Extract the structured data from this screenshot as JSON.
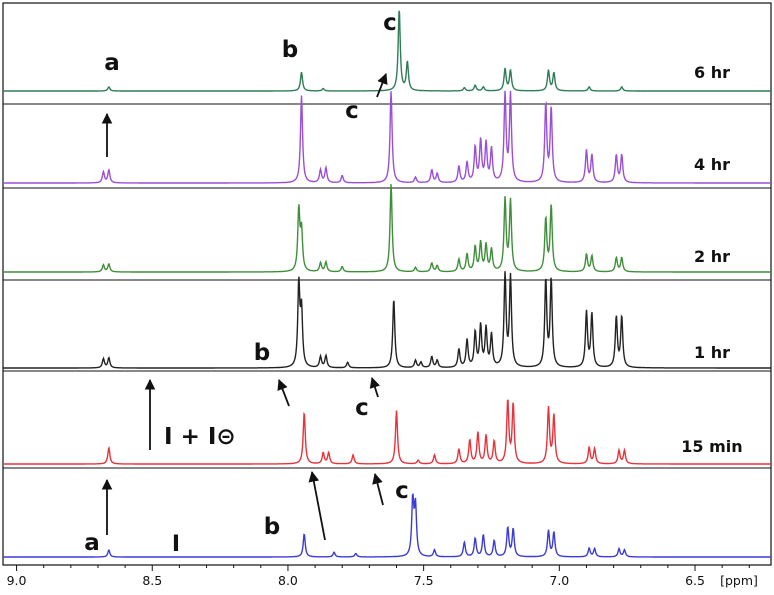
{
  "chart_data": {
    "type": "line",
    "title": "",
    "xlabel": "",
    "x_unit": "[ppm]",
    "xlim": [
      9.05,
      6.22
    ],
    "x_reversed": true,
    "x_ticks": [
      {
        "value": 9.0,
        "label": "9.0"
      },
      {
        "value": 8.5,
        "label": "8.5"
      },
      {
        "value": 8.0,
        "label": "8.0"
      },
      {
        "value": 7.5,
        "label": "7.5"
      },
      {
        "value": 7.0,
        "label": "7.0"
      },
      {
        "value": 6.5,
        "label": "6.5"
      }
    ],
    "series": [
      {
        "name": "6 hr",
        "color": "#2e7d55",
        "peaks": [
          [
            8.66,
            0.05
          ],
          [
            7.95,
            0.23
          ],
          [
            7.87,
            0.03
          ],
          [
            7.59,
            1.0
          ],
          [
            7.56,
            0.35
          ],
          [
            7.35,
            0.04
          ],
          [
            7.31,
            0.07
          ],
          [
            7.28,
            0.05
          ],
          [
            7.2,
            0.27
          ],
          [
            7.18,
            0.25
          ],
          [
            7.04,
            0.25
          ],
          [
            7.02,
            0.22
          ],
          [
            6.89,
            0.05
          ],
          [
            6.77,
            0.05
          ]
        ]
      },
      {
        "name": "4 hr",
        "color": "#9b4fd6",
        "peaks": [
          [
            8.68,
            0.12
          ],
          [
            8.66,
            0.14
          ],
          [
            7.95,
            0.95
          ],
          [
            7.88,
            0.14
          ],
          [
            7.86,
            0.16
          ],
          [
            7.8,
            0.08
          ],
          [
            7.62,
            1.0
          ],
          [
            7.53,
            0.06
          ],
          [
            7.47,
            0.14
          ],
          [
            7.45,
            0.1
          ],
          [
            7.37,
            0.18
          ],
          [
            7.34,
            0.22
          ],
          [
            7.31,
            0.38
          ],
          [
            7.29,
            0.45
          ],
          [
            7.27,
            0.42
          ],
          [
            7.25,
            0.36
          ],
          [
            7.2,
            0.95
          ],
          [
            7.18,
            0.95
          ],
          [
            7.05,
            0.85
          ],
          [
            7.03,
            0.8
          ],
          [
            6.9,
            0.35
          ],
          [
            6.88,
            0.3
          ],
          [
            6.79,
            0.3
          ],
          [
            6.77,
            0.3
          ]
        ]
      },
      {
        "name": "2 hr",
        "color": "#3f8f3a",
        "peaks": [
          [
            8.68,
            0.08
          ],
          [
            8.66,
            0.09
          ],
          [
            7.96,
            0.7
          ],
          [
            7.95,
            0.45
          ],
          [
            7.88,
            0.1
          ],
          [
            7.86,
            0.11
          ],
          [
            7.8,
            0.06
          ],
          [
            7.62,
            1.0
          ],
          [
            7.53,
            0.05
          ],
          [
            7.47,
            0.1
          ],
          [
            7.45,
            0.07
          ],
          [
            7.37,
            0.14
          ],
          [
            7.34,
            0.2
          ],
          [
            7.31,
            0.28
          ],
          [
            7.29,
            0.33
          ],
          [
            7.27,
            0.3
          ],
          [
            7.25,
            0.25
          ],
          [
            7.2,
            0.82
          ],
          [
            7.18,
            0.8
          ],
          [
            7.05,
            0.6
          ],
          [
            7.03,
            0.75
          ],
          [
            6.9,
            0.2
          ],
          [
            6.88,
            0.18
          ],
          [
            6.79,
            0.16
          ],
          [
            6.77,
            0.16
          ]
        ]
      },
      {
        "name": "1 hr",
        "color": "#222222",
        "peaks": [
          [
            8.68,
            0.1
          ],
          [
            8.66,
            0.11
          ],
          [
            7.96,
            0.9
          ],
          [
            7.95,
            0.6
          ],
          [
            7.88,
            0.12
          ],
          [
            7.86,
            0.13
          ],
          [
            7.78,
            0.06
          ],
          [
            7.61,
            0.75
          ],
          [
            7.53,
            0.08
          ],
          [
            7.51,
            0.06
          ],
          [
            7.47,
            0.12
          ],
          [
            7.45,
            0.08
          ],
          [
            7.37,
            0.2
          ],
          [
            7.34,
            0.3
          ],
          [
            7.31,
            0.38
          ],
          [
            7.29,
            0.45
          ],
          [
            7.27,
            0.42
          ],
          [
            7.25,
            0.35
          ],
          [
            7.2,
            1.0
          ],
          [
            7.18,
            0.98
          ],
          [
            7.05,
            0.95
          ],
          [
            7.03,
            0.95
          ],
          [
            6.9,
            0.6
          ],
          [
            6.88,
            0.58
          ],
          [
            6.79,
            0.55
          ],
          [
            6.77,
            0.55
          ]
        ]
      },
      {
        "name": "15 min",
        "color": "#e8333a",
        "peaks": [
          [
            8.66,
            0.22
          ],
          [
            7.94,
            0.7
          ],
          [
            7.87,
            0.15
          ],
          [
            7.85,
            0.15
          ],
          [
            7.76,
            0.12
          ],
          [
            7.6,
            0.72
          ],
          [
            7.52,
            0.05
          ],
          [
            7.46,
            0.12
          ],
          [
            7.37,
            0.2
          ],
          [
            7.33,
            0.32
          ],
          [
            7.3,
            0.42
          ],
          [
            7.27,
            0.38
          ],
          [
            7.24,
            0.3
          ],
          [
            7.19,
            0.85
          ],
          [
            7.17,
            0.8
          ],
          [
            7.04,
            0.75
          ],
          [
            7.02,
            0.65
          ],
          [
            6.89,
            0.22
          ],
          [
            6.87,
            0.2
          ],
          [
            6.78,
            0.18
          ],
          [
            6.76,
            0.18
          ]
        ]
      },
      {
        "name": "",
        "color": "#3b3bd6",
        "peaks": [
          [
            8.66,
            0.12
          ],
          [
            7.94,
            0.4
          ],
          [
            7.83,
            0.08
          ],
          [
            7.75,
            0.06
          ],
          [
            7.54,
            1.0
          ],
          [
            7.53,
            0.85
          ],
          [
            7.46,
            0.12
          ],
          [
            7.35,
            0.25
          ],
          [
            7.31,
            0.32
          ],
          [
            7.28,
            0.38
          ],
          [
            7.24,
            0.28
          ],
          [
            7.19,
            0.5
          ],
          [
            7.17,
            0.48
          ],
          [
            7.04,
            0.45
          ],
          [
            7.02,
            0.42
          ],
          [
            6.89,
            0.15
          ],
          [
            6.87,
            0.14
          ],
          [
            6.78,
            0.14
          ],
          [
            6.76,
            0.12
          ]
        ]
      }
    ],
    "series_labels": [
      "6 hr",
      "4 hr",
      "2 hr",
      "1 hr",
      "15 min"
    ],
    "peak_labels": [
      "a",
      "b",
      "c",
      "b",
      "c",
      "c",
      "c",
      "a",
      "b",
      "c"
    ],
    "annotation": "I + I⊝",
    "marker": "I"
  }
}
